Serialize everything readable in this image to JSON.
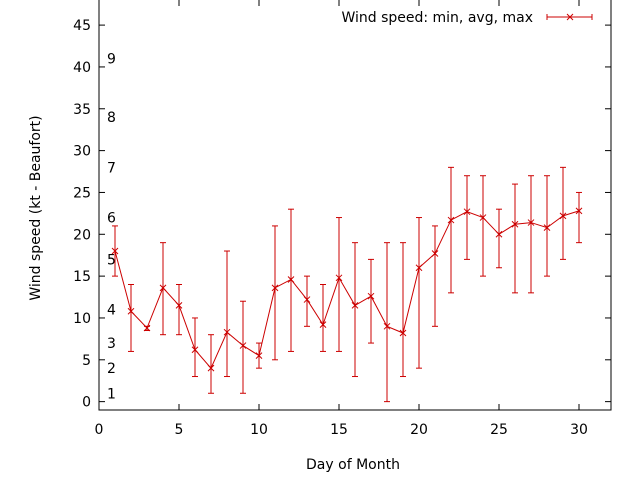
{
  "chart_data": {
    "type": "line",
    "xlabel": "Day of Month",
    "ylabel": "Wind speed (kt - Beaufort)",
    "xlim": [
      0,
      32
    ],
    "ylim": [
      -1,
      48
    ],
    "xticks": [
      "0",
      "5",
      "10",
      "15",
      "20",
      "25",
      "30"
    ],
    "yticks": [
      "0",
      "5",
      "10",
      "15",
      "20",
      "25",
      "30",
      "35",
      "40",
      "45"
    ],
    "grid": false,
    "legend": "top-right",
    "beaufort_labels": [
      {
        "label": "1",
        "y": 1
      },
      {
        "label": "2",
        "y": 4
      },
      {
        "label": "3",
        "y": 7
      },
      {
        "label": "4",
        "y": 11
      },
      {
        "label": "5",
        "y": 17
      },
      {
        "label": "6",
        "y": 22
      },
      {
        "label": "7",
        "y": 28
      },
      {
        "label": "8",
        "y": 34
      },
      {
        "label": "9",
        "y": 41
      }
    ],
    "series": [
      {
        "name": "Wind speed: min, avg, max",
        "color": "#cc0000",
        "points": [
          {
            "x": 1,
            "min": 15,
            "avg": 18,
            "max": 21
          },
          {
            "x": 2,
            "min": 6,
            "avg": 10.8,
            "max": 14
          },
          {
            "x": 3,
            "min": 8.5,
            "avg": 8.8,
            "max": 9
          },
          {
            "x": 4,
            "min": 8,
            "avg": 13.6,
            "max": 19
          },
          {
            "x": 5,
            "min": 8,
            "avg": 11.5,
            "max": 14
          },
          {
            "x": 6,
            "min": 3,
            "avg": 6.2,
            "max": 10
          },
          {
            "x": 7,
            "min": 1,
            "avg": 4,
            "max": 8
          },
          {
            "x": 8,
            "min": 3,
            "avg": 8.3,
            "max": 18
          },
          {
            "x": 9,
            "min": 1,
            "avg": 6.7,
            "max": 12
          },
          {
            "x": 10,
            "min": 4,
            "avg": 5.5,
            "max": 7
          },
          {
            "x": 11,
            "min": 5,
            "avg": 13.6,
            "max": 21
          },
          {
            "x": 12,
            "min": 6,
            "avg": 14.6,
            "max": 23
          },
          {
            "x": 13,
            "min": 9,
            "avg": 12.2,
            "max": 15
          },
          {
            "x": 14,
            "min": 6,
            "avg": 9.2,
            "max": 14
          },
          {
            "x": 15,
            "min": 6,
            "avg": 14.8,
            "max": 22
          },
          {
            "x": 16,
            "min": 3,
            "avg": 11.5,
            "max": 19
          },
          {
            "x": 17,
            "min": 7,
            "avg": 12.6,
            "max": 17
          },
          {
            "x": 18,
            "min": 0,
            "avg": 9,
            "max": 19
          },
          {
            "x": 19,
            "min": 3,
            "avg": 8.2,
            "max": 19
          },
          {
            "x": 20,
            "min": 4,
            "avg": 16,
            "max": 22
          },
          {
            "x": 21,
            "min": 9,
            "avg": 17.7,
            "max": 21
          },
          {
            "x": 22,
            "min": 13,
            "avg": 21.7,
            "max": 28
          },
          {
            "x": 23,
            "min": 17,
            "avg": 22.7,
            "max": 27
          },
          {
            "x": 24,
            "min": 15,
            "avg": 22,
            "max": 27
          },
          {
            "x": 25,
            "min": 16,
            "avg": 20,
            "max": 23
          },
          {
            "x": 26,
            "min": 13,
            "avg": 21.2,
            "max": 26
          },
          {
            "x": 27,
            "min": 13,
            "avg": 21.4,
            "max": 27
          },
          {
            "x": 28,
            "min": 15,
            "avg": 20.8,
            "max": 27
          },
          {
            "x": 29,
            "min": 17,
            "avg": 22.2,
            "max": 28
          },
          {
            "x": 30,
            "min": 19,
            "avg": 22.8,
            "max": 25
          }
        ]
      }
    ]
  }
}
